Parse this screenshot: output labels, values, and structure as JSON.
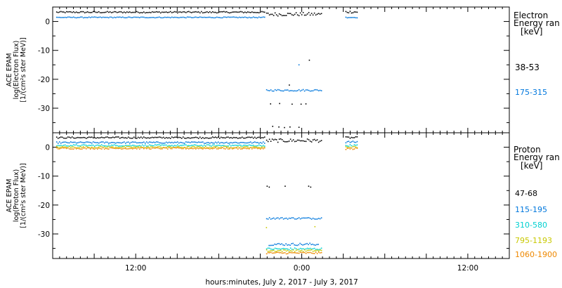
{
  "chart_data": [
    {
      "type": "scatter",
      "ylabel_lines": [
        "ACE EPAM",
        "log(Electron Flux)",
        "[1/(cm²s ster MeV)]"
      ],
      "legend_title_lines": [
        "Electron",
        "Energy ran",
        "[keV]"
      ],
      "ylim": [
        -38.5,
        5
      ],
      "yticks": [
        0,
        -10,
        -20,
        -30
      ],
      "series": [
        {
          "name": "38-53",
          "color": "#000000",
          "segments": [
            {
              "x0": 0.5,
              "x1": 30.75,
              "y": 3.2,
              "jitter": 0.25
            },
            {
              "x0": 30.85,
              "x1": 38.8,
              "y": 2.5,
              "jitter": 0.6
            },
            {
              "x0": 42.3,
              "x1": 44.0,
              "y": 3.3,
              "jitter": 0.4
            }
          ],
          "points": [
            [
              37.1,
              -13.4
            ],
            [
              34.2,
              -22.0
            ],
            [
              31.5,
              -28.5
            ],
            [
              32.8,
              -28.4
            ],
            [
              34.6,
              -28.6
            ],
            [
              35.9,
              -28.6
            ],
            [
              36.6,
              -28.5
            ],
            [
              31.8,
              -36.3
            ],
            [
              32.7,
              -36.5
            ],
            [
              33.5,
              -36.7
            ],
            [
              34.3,
              -36.5
            ],
            [
              35.6,
              -36.6
            ]
          ]
        },
        {
          "name": "175-315",
          "color": "#0077dd",
          "segments": [
            {
              "x0": 0.5,
              "x1": 30.75,
              "y": 1.4,
              "jitter": 0.15
            },
            {
              "x0": 30.85,
              "x1": 38.8,
              "y": -23.8,
              "jitter": 0.3
            },
            {
              "x0": 42.3,
              "x1": 44.0,
              "y": 1.4,
              "jitter": 0.15
            }
          ],
          "points": [
            [
              35.6,
              -15.0
            ]
          ]
        }
      ]
    },
    {
      "type": "scatter",
      "ylabel_lines": [
        "ACE EPAM",
        "log(Proton Flux)",
        "[1/(cm²s ster MeV)]"
      ],
      "legend_title_lines": [
        "Proton",
        "Energy ran",
        "[keV]"
      ],
      "ylim": [
        -38.5,
        5
      ],
      "yticks": [
        0,
        -10,
        -20,
        -30
      ],
      "series": [
        {
          "name": "47-68",
          "color": "#000000",
          "segments": [
            {
              "x0": 0.5,
              "x1": 30.75,
              "y": 3.3,
              "jitter": 0.25
            },
            {
              "x0": 30.85,
              "x1": 38.8,
              "y": 2.3,
              "jitter": 0.6
            },
            {
              "x0": 42.3,
              "x1": 44.0,
              "y": 3.3,
              "jitter": 0.3
            }
          ],
          "points": [
            [
              31.0,
              -13.5
            ],
            [
              31.3,
              -13.8
            ],
            [
              33.6,
              -13.5
            ],
            [
              37.0,
              -13.5
            ],
            [
              37.3,
              -13.8
            ]
          ]
        },
        {
          "name": "115-195",
          "color": "#0077dd",
          "segments": [
            {
              "x0": 0.5,
              "x1": 30.75,
              "y": 1.6,
              "jitter": 0.25
            },
            {
              "x0": 30.85,
              "x1": 38.8,
              "y": -24.6,
              "jitter": 0.3
            },
            {
              "x0": 31.2,
              "x1": 38.4,
              "y": -33.6,
              "jitter": 0.4
            },
            {
              "x0": 42.3,
              "x1": 44.0,
              "y": 1.8,
              "jitter": 0.3
            }
          ],
          "points": []
        },
        {
          "name": "310-580",
          "color": "#00d0d0",
          "segments": [
            {
              "x0": 0.5,
              "x1": 30.75,
              "y": 0.6,
              "jitter": 0.25
            },
            {
              "x0": 30.85,
              "x1": 38.8,
              "y": -35.2,
              "jitter": 0.35
            },
            {
              "x0": 42.3,
              "x1": 44.0,
              "y": 0.6,
              "jitter": 0.3
            }
          ],
          "points": []
        },
        {
          "name": "795-1193",
          "color": "#c8c800",
          "segments": [
            {
              "x0": 0.5,
              "x1": 30.75,
              "y": 0.0,
              "jitter": 0.25
            },
            {
              "x0": 30.85,
              "x1": 38.8,
              "y": -35.8,
              "jitter": 0.35
            },
            {
              "x0": 42.3,
              "x1": 44.0,
              "y": 0.0,
              "jitter": 0.3
            }
          ],
          "points": [
            [
              30.9,
              -27.8
            ],
            [
              37.9,
              -27.5
            ]
          ]
        },
        {
          "name": "1060-1900",
          "color": "#ee8800",
          "segments": [
            {
              "x0": 0.5,
              "x1": 30.75,
              "y": -0.4,
              "jitter": 0.25
            },
            {
              "x0": 30.85,
              "x1": 38.8,
              "y": -36.6,
              "jitter": 0.3
            },
            {
              "x0": 42.3,
              "x1": 44.0,
              "y": -0.5,
              "jitter": 0.3
            }
          ],
          "points": []
        }
      ]
    }
  ],
  "x_axis": {
    "label": "hours:minutes, July  2, 2017 - July  3, 2017",
    "range_hours": [
      0,
      66
    ],
    "ticks": [
      {
        "h": 12,
        "label": "12:00"
      },
      {
        "h": 36,
        "label": "0:00"
      },
      {
        "h": 60,
        "label": "12:00"
      }
    ],
    "minor_every_hours": 1,
    "major_every_hours": 6
  }
}
